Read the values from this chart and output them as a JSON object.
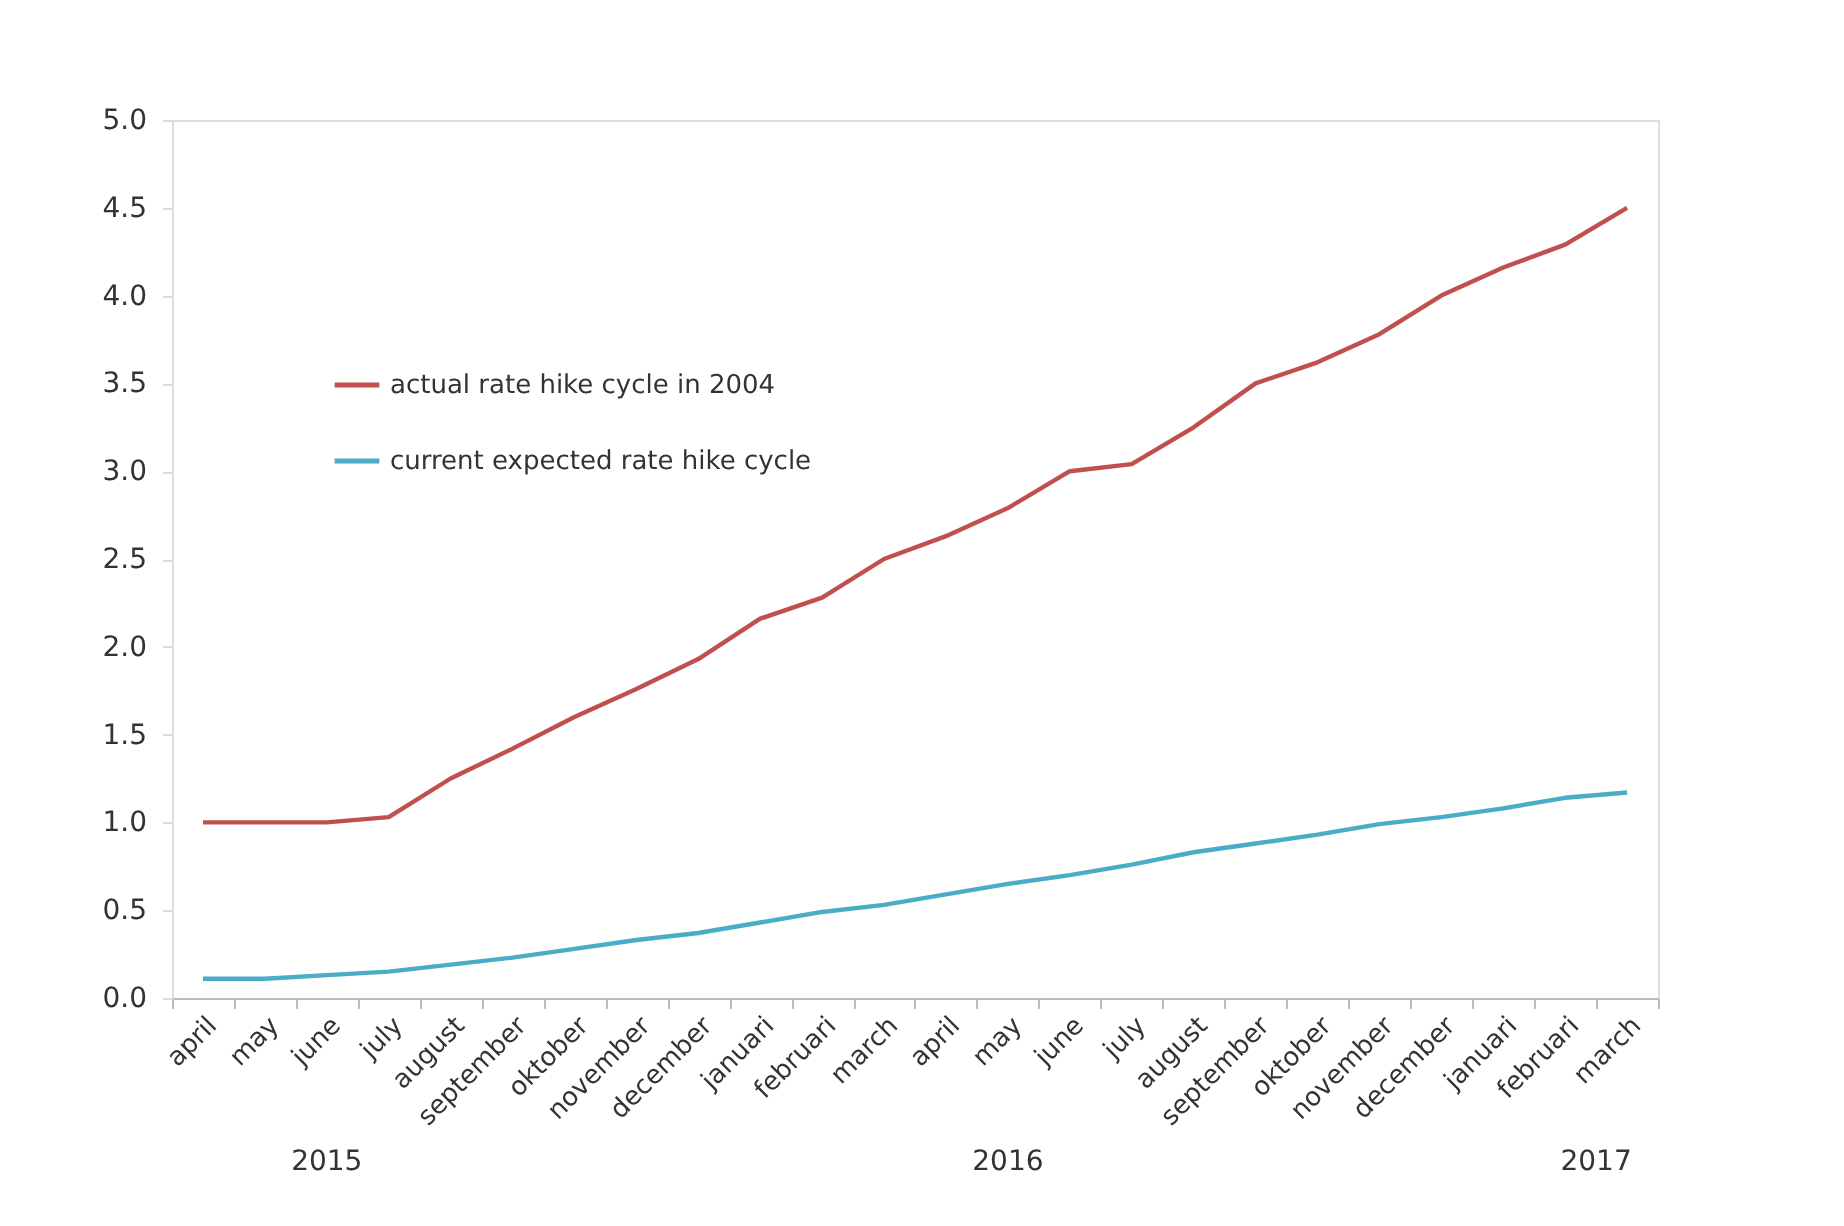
{
  "chart_data": {
    "type": "line",
    "categories": [
      "april",
      "may",
      "june",
      "july",
      "august",
      "september",
      "oktober",
      "november",
      "december",
      "januari",
      "februari",
      "march",
      "april",
      "may",
      "june",
      "july",
      "august",
      "september",
      "oktober",
      "november",
      "december",
      "januari",
      "februari",
      "march"
    ],
    "series": [
      {
        "name": "actual rate hike cycle in 2004",
        "color": "#c0504d",
        "values": [
          1.0,
          1.0,
          1.0,
          1.03,
          1.25,
          1.42,
          1.6,
          1.76,
          1.93,
          2.16,
          2.28,
          2.5,
          2.63,
          2.79,
          3.0,
          3.04,
          3.25,
          3.5,
          3.62,
          3.78,
          4.0,
          4.16,
          4.29,
          4.5
        ]
      },
      {
        "name": "current expected rate hike cycle",
        "color": "#4bacc6",
        "values": [
          0.11,
          0.11,
          0.13,
          0.15,
          0.19,
          0.23,
          0.28,
          0.33,
          0.37,
          0.43,
          0.49,
          0.53,
          0.59,
          0.65,
          0.7,
          0.76,
          0.83,
          0.88,
          0.93,
          0.99,
          1.03,
          1.08,
          1.14,
          1.17
        ]
      }
    ],
    "ylim": [
      0,
      5
    ],
    "yticks": [
      {
        "value": 0,
        "label": "0.0"
      },
      {
        "value": 0.5,
        "label": "0.5"
      },
      {
        "value": 1,
        "label": "1.0"
      },
      {
        "value": 1.5,
        "label": "1.5"
      },
      {
        "value": 2,
        "label": "2.0"
      },
      {
        "value": 2.5,
        "label": "2.5"
      },
      {
        "value": 3,
        "label": "3.0"
      },
      {
        "value": 3.5,
        "label": "3.5"
      },
      {
        "value": 4,
        "label": "4.0"
      },
      {
        "value": 4.5,
        "label": "4.5"
      },
      {
        "value": 5,
        "label": "5.0"
      }
    ],
    "annotations": [
      "2015",
      "2016",
      "2017"
    ],
    "legend": "top left",
    "grid": false
  }
}
